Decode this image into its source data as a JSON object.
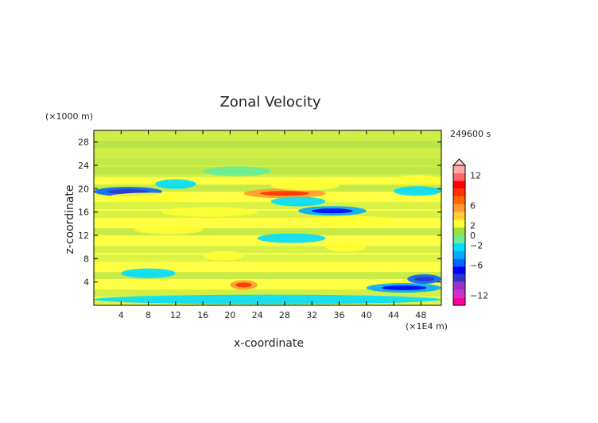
{
  "chart_data": {
    "type": "heatmap",
    "title": "Zonal Velocity",
    "xlabel": "x-coordinate",
    "ylabel": "z-coordinate",
    "x_unit": "(×1E4 m)",
    "y_unit": "(×1000 m)",
    "time_label": "249600 s",
    "xlim": [
      0,
      51
    ],
    "ylim": [
      0,
      30
    ],
    "x_ticks": [
      "4",
      "8",
      "12",
      "16",
      "20",
      "24",
      "28",
      "32",
      "36",
      "40",
      "44",
      "48"
    ],
    "y_ticks": [
      "4",
      "8",
      "12",
      "16",
      "20",
      "24",
      "28"
    ],
    "colorbar": {
      "ticks": [
        "12",
        "6",
        "2",
        "0",
        "−2",
        "−6",
        "−12"
      ],
      "min": -14,
      "max": 14,
      "colors": [
        "#ff0099",
        "#cc33cc",
        "#9933cc",
        "#3333cc",
        "#0000ff",
        "#0066ff",
        "#00aaff",
        "#00ddff",
        "#66ee99",
        "#99e044",
        "#ffff33",
        "#ffcc33",
        "#ff9933",
        "#ff6600",
        "#ff3300",
        "#ff0000",
        "#ff6666",
        "#ffaaaa"
      ]
    },
    "bands": [
      {
        "z": 19.5,
        "x0": 0,
        "x1": 10,
        "value": -5
      },
      {
        "z": 20.8,
        "x0": 9,
        "x1": 15,
        "value": -3
      },
      {
        "z": 18.5,
        "x0": 2,
        "x1": 14,
        "value": 3
      },
      {
        "z": 19.2,
        "x0": 22,
        "x1": 34,
        "value": 5
      },
      {
        "z": 20.5,
        "x0": 26,
        "x1": 36,
        "value": 3
      },
      {
        "z": 17.8,
        "x0": 26,
        "x1": 34,
        "value": -3
      },
      {
        "z": 16.2,
        "x0": 30,
        "x1": 40,
        "value": -4
      },
      {
        "z": 19.6,
        "x0": 44,
        "x1": 51,
        "value": -3
      },
      {
        "z": 21.5,
        "x0": 44,
        "x1": 51,
        "value": 3
      },
      {
        "z": 16.0,
        "x0": 10,
        "x1": 24,
        "value": 3
      },
      {
        "z": 13.0,
        "x0": 6,
        "x1": 16,
        "value": 3
      },
      {
        "z": 14.5,
        "x0": 32,
        "x1": 44,
        "value": 3
      },
      {
        "z": 10.0,
        "x0": 34,
        "x1": 40,
        "value": 3
      },
      {
        "z": 8.5,
        "x0": 16,
        "x1": 22,
        "value": 3
      },
      {
        "z": 3.5,
        "x0": 20,
        "x1": 24,
        "value": 5
      },
      {
        "z": 5.5,
        "x0": 4,
        "x1": 12,
        "value": -2
      },
      {
        "z": 3.0,
        "x0": 40,
        "x1": 51,
        "value": -4
      },
      {
        "z": 4.5,
        "x0": 46,
        "x1": 51,
        "value": -6
      },
      {
        "z": 1.0,
        "x0": 0,
        "x1": 51,
        "value": -2
      },
      {
        "z": 23.0,
        "x0": 16,
        "x1": 26,
        "value": -1
      },
      {
        "z": 11.5,
        "x0": 24,
        "x1": 34,
        "value": -2
      }
    ]
  }
}
